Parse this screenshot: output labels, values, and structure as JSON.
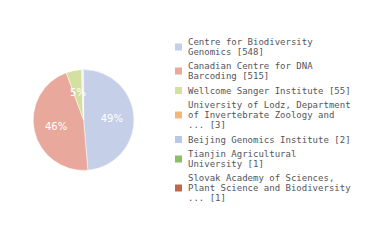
{
  "chart_data": {
    "type": "pie",
    "categories": [
      "Centre for Biodiversity\nGenomics [548]",
      "Canadian Centre for DNA\nBarcoding [515]",
      "Wellcome Sanger Institute [55]",
      "University of Lodz, Department\nof Invertebrate Zoology and\n... [3]",
      "Beijing Genomics Institute [2]",
      "Tianjin Agricultural\nUniversity [1]",
      "Slovak Academy of Sciences,\nPlant Science and Biodiversity\n... [1]"
    ],
    "values": [
      48.7,
      45.8,
      4.9,
      0.3,
      0.2,
      0.1,
      0.1
    ],
    "value_labels": [
      "49%",
      "46%",
      "5%",
      null,
      null,
      null,
      null
    ],
    "data_labels": true,
    "colors": [
      "#c5cfe8",
      "#e8a89c",
      "#d4e0a0",
      "#f0b87a",
      "#b8c8e8",
      "#8fbc6a",
      "#c06848"
    ],
    "legend": "right"
  }
}
